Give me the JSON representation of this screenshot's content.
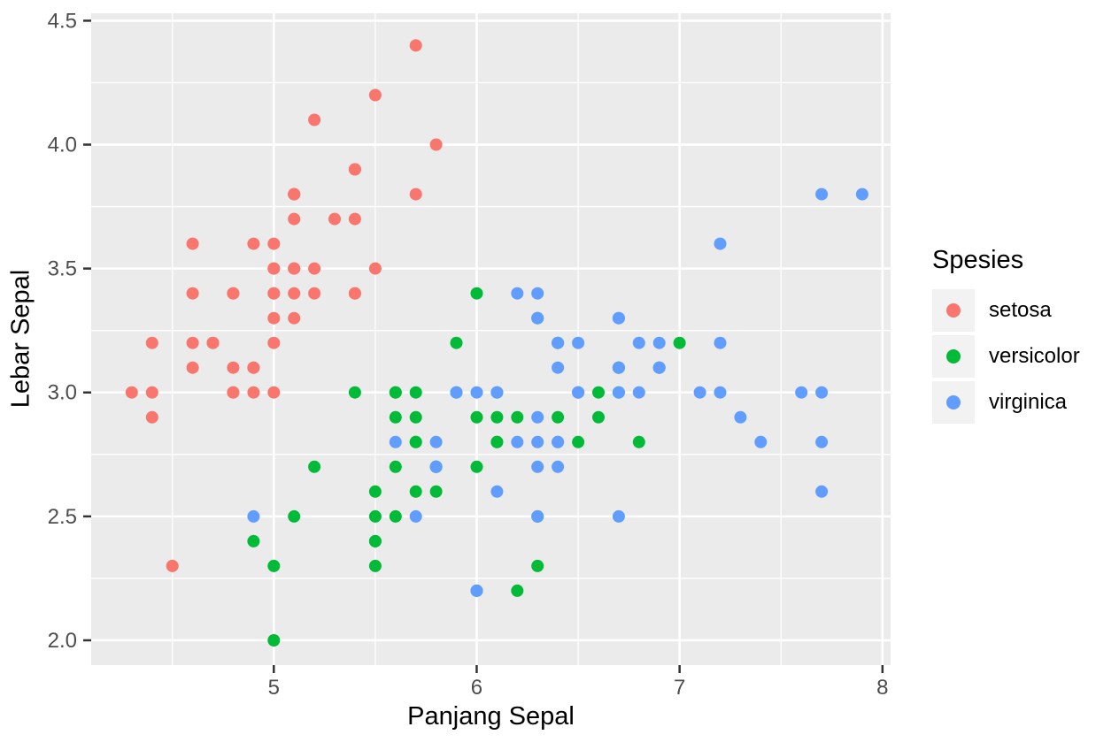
{
  "chart_data": {
    "type": "scatter",
    "title": "",
    "xlabel": "Panjang Sepal",
    "ylabel": "Lebar Sepal",
    "legend_title": "Spesies",
    "legend_position": "right",
    "grid": "on",
    "xlim": [
      4.1,
      8.04
    ],
    "ylim": [
      1.9,
      4.53
    ],
    "x_ticks": [
      5,
      6,
      7,
      8
    ],
    "x_tick_labels": [
      "5",
      "6",
      "7",
      "8"
    ],
    "x_minor_ticks": [
      4.5,
      5.5,
      6.5,
      7.5
    ],
    "y_ticks": [
      2.0,
      2.5,
      3.0,
      3.5,
      4.0,
      4.5
    ],
    "y_tick_labels": [
      "2.0",
      "2.5",
      "3.0",
      "3.5",
      "4.0",
      "4.5"
    ],
    "y_minor_ticks": [
      2.25,
      2.75,
      3.25,
      3.75,
      4.25
    ],
    "colors": {
      "panel_bg": "#EBEBEB",
      "grid": "#FFFFFF",
      "tick": "#333333",
      "tick_label": "#4D4D4D",
      "title": "#000000",
      "legend_key_bg": "#F2F2F2"
    },
    "point_radius": 7,
    "series": [
      {
        "name": "setosa",
        "color": "#F8766D",
        "points": [
          [
            5.1,
            3.5
          ],
          [
            4.9,
            3.0
          ],
          [
            4.7,
            3.2
          ],
          [
            4.6,
            3.1
          ],
          [
            5.0,
            3.6
          ],
          [
            5.4,
            3.9
          ],
          [
            4.6,
            3.4
          ],
          [
            5.0,
            3.4
          ],
          [
            4.4,
            2.9
          ],
          [
            4.9,
            3.1
          ],
          [
            5.4,
            3.7
          ],
          [
            4.8,
            3.4
          ],
          [
            4.8,
            3.0
          ],
          [
            4.3,
            3.0
          ],
          [
            5.8,
            4.0
          ],
          [
            5.7,
            4.4
          ],
          [
            5.4,
            3.9
          ],
          [
            5.1,
            3.5
          ],
          [
            5.7,
            3.8
          ],
          [
            5.1,
            3.8
          ],
          [
            5.4,
            3.4
          ],
          [
            5.1,
            3.7
          ],
          [
            4.6,
            3.6
          ],
          [
            5.1,
            3.3
          ],
          [
            4.8,
            3.4
          ],
          [
            5.0,
            3.0
          ],
          [
            5.0,
            3.4
          ],
          [
            5.2,
            3.5
          ],
          [
            5.2,
            3.4
          ],
          [
            4.7,
            3.2
          ],
          [
            4.8,
            3.1
          ],
          [
            5.4,
            3.4
          ],
          [
            5.2,
            4.1
          ],
          [
            5.5,
            4.2
          ],
          [
            4.9,
            3.1
          ],
          [
            5.0,
            3.2
          ],
          [
            5.5,
            3.5
          ],
          [
            4.9,
            3.6
          ],
          [
            4.4,
            3.0
          ],
          [
            5.1,
            3.4
          ],
          [
            5.0,
            3.5
          ],
          [
            4.5,
            2.3
          ],
          [
            4.4,
            3.2
          ],
          [
            5.0,
            3.5
          ],
          [
            5.1,
            3.8
          ],
          [
            4.8,
            3.0
          ],
          [
            5.1,
            3.8
          ],
          [
            4.6,
            3.2
          ],
          [
            5.3,
            3.7
          ],
          [
            5.0,
            3.3
          ]
        ]
      },
      {
        "name": "versicolor",
        "color": "#00BA38",
        "points": [
          [
            7.0,
            3.2
          ],
          [
            6.4,
            3.2
          ],
          [
            6.9,
            3.1
          ],
          [
            5.5,
            2.3
          ],
          [
            6.5,
            2.8
          ],
          [
            5.7,
            2.8
          ],
          [
            6.3,
            3.3
          ],
          [
            4.9,
            2.4
          ],
          [
            6.6,
            2.9
          ],
          [
            5.2,
            2.7
          ],
          [
            5.0,
            2.0
          ],
          [
            5.9,
            3.0
          ],
          [
            6.0,
            2.2
          ],
          [
            6.1,
            2.9
          ],
          [
            5.6,
            2.9
          ],
          [
            6.7,
            3.1
          ],
          [
            5.6,
            3.0
          ],
          [
            5.8,
            2.7
          ],
          [
            6.2,
            2.2
          ],
          [
            5.6,
            2.5
          ],
          [
            5.9,
            3.2
          ],
          [
            6.1,
            2.8
          ],
          [
            6.3,
            2.5
          ],
          [
            6.1,
            2.8
          ],
          [
            6.4,
            2.9
          ],
          [
            6.6,
            3.0
          ],
          [
            6.8,
            2.8
          ],
          [
            6.7,
            3.0
          ],
          [
            6.0,
            2.9
          ],
          [
            5.7,
            2.6
          ],
          [
            5.5,
            2.4
          ],
          [
            5.5,
            2.4
          ],
          [
            5.8,
            2.7
          ],
          [
            6.0,
            2.7
          ],
          [
            5.4,
            3.0
          ],
          [
            6.0,
            3.4
          ],
          [
            6.7,
            3.1
          ],
          [
            6.3,
            2.3
          ],
          [
            5.6,
            3.0
          ],
          [
            5.5,
            2.5
          ],
          [
            5.5,
            2.6
          ],
          [
            6.1,
            3.0
          ],
          [
            5.8,
            2.6
          ],
          [
            5.0,
            2.3
          ],
          [
            5.6,
            2.7
          ],
          [
            5.7,
            3.0
          ],
          [
            5.7,
            2.9
          ],
          [
            6.2,
            2.9
          ],
          [
            5.1,
            2.5
          ],
          [
            5.7,
            2.8
          ]
        ]
      },
      {
        "name": "virginica",
        "color": "#619CFF",
        "points": [
          [
            6.3,
            3.3
          ],
          [
            5.8,
            2.7
          ],
          [
            7.1,
            3.0
          ],
          [
            6.3,
            2.9
          ],
          [
            6.5,
            3.0
          ],
          [
            7.6,
            3.0
          ],
          [
            4.9,
            2.5
          ],
          [
            7.3,
            2.9
          ],
          [
            6.7,
            2.5
          ],
          [
            7.2,
            3.6
          ],
          [
            6.5,
            3.2
          ],
          [
            6.4,
            2.7
          ],
          [
            6.8,
            3.0
          ],
          [
            5.7,
            2.5
          ],
          [
            5.8,
            2.8
          ],
          [
            6.4,
            3.2
          ],
          [
            6.5,
            3.0
          ],
          [
            7.7,
            3.8
          ],
          [
            7.7,
            2.6
          ],
          [
            6.0,
            2.2
          ],
          [
            6.9,
            3.2
          ],
          [
            5.6,
            2.8
          ],
          [
            7.7,
            2.8
          ],
          [
            6.3,
            2.7
          ],
          [
            6.7,
            3.3
          ],
          [
            7.2,
            3.2
          ],
          [
            6.2,
            2.8
          ],
          [
            6.1,
            3.0
          ],
          [
            6.4,
            2.8
          ],
          [
            7.2,
            3.0
          ],
          [
            7.4,
            2.8
          ],
          [
            7.9,
            3.8
          ],
          [
            6.4,
            2.8
          ],
          [
            6.3,
            2.8
          ],
          [
            6.1,
            2.6
          ],
          [
            7.7,
            3.0
          ],
          [
            6.3,
            3.4
          ],
          [
            6.4,
            3.1
          ],
          [
            6.0,
            3.0
          ],
          [
            6.9,
            3.1
          ],
          [
            6.7,
            3.1
          ],
          [
            6.9,
            3.1
          ],
          [
            5.8,
            2.7
          ],
          [
            6.8,
            3.2
          ],
          [
            6.7,
            3.3
          ],
          [
            6.7,
            3.0
          ],
          [
            6.3,
            2.5
          ],
          [
            6.5,
            3.0
          ],
          [
            6.2,
            3.4
          ],
          [
            5.9,
            3.0
          ]
        ]
      }
    ]
  }
}
